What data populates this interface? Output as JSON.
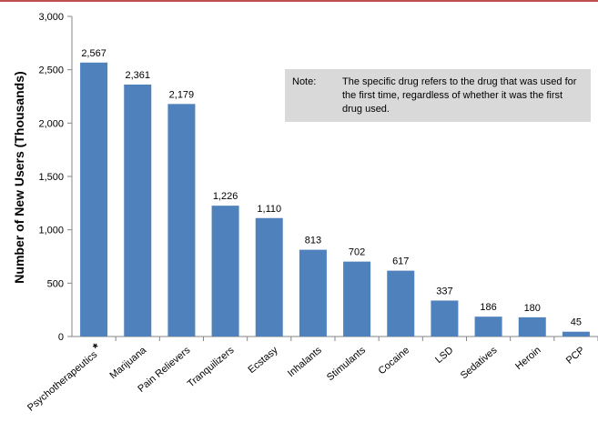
{
  "chart_data": {
    "type": "bar",
    "ylabel": "Number of New Users (Thousands)",
    "ylim": [
      0,
      3000
    ],
    "yticks": [
      0,
      500,
      1000,
      1500,
      2000,
      2500,
      3000
    ],
    "ytick_labels": [
      "0",
      "500",
      "1,000",
      "1,500",
      "2,000",
      "2,500",
      "3,000"
    ],
    "categories": [
      "Psychotherapeutics",
      "Marijuana",
      "Pain Relievers",
      "Tranquilizers",
      "Ecstasy",
      "Inhalants",
      "Stimulants",
      "Cocaine",
      "LSD",
      "Sedatives",
      "Heroin",
      "PCP"
    ],
    "category_marks": [
      "*",
      "",
      "",
      "",
      "",
      "",
      "",
      "",
      "",
      "",
      "",
      ""
    ],
    "values": [
      2567,
      2361,
      2179,
      1226,
      1110,
      813,
      702,
      617,
      337,
      186,
      180,
      45
    ],
    "value_labels": [
      "2,567",
      "2,361",
      "2,179",
      "1,226",
      "1,110",
      "813",
      "702",
      "617",
      "337",
      "186",
      "180",
      "45"
    ],
    "bar_color": "#4f81bd",
    "grid": false
  },
  "note": {
    "lead": "Note:",
    "text": "The specific drug refers to the drug that was used for the first time, regardless of whether it was the first drug used."
  },
  "colors": {
    "top_rule": "#c0504d",
    "note_background": "#d9d9d9"
  }
}
